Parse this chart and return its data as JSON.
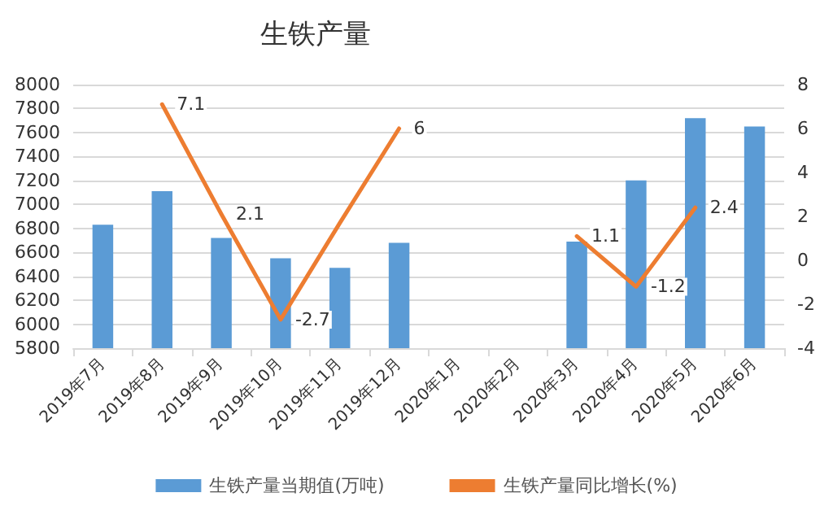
{
  "chart_data": {
    "type": "bar",
    "title": "生铁产量",
    "categories": [
      "2019年7月",
      "2019年8月",
      "2019年9月",
      "2019年10月",
      "2019年11月",
      "2019年12月",
      "2020年1月",
      "2020年2月",
      "2020年3月",
      "2020年4月",
      "2020年5月",
      "2020年6月"
    ],
    "series": [
      {
        "name": "生铁产量当期值(万吨)",
        "color": "#5b9bd5",
        "values": [
          6830,
          7110,
          6720,
          6550,
          6470,
          6680,
          null,
          null,
          6690,
          7200,
          7720,
          7650
        ]
      },
      {
        "name": "生铁产量同比增长(%)",
        "type": "line",
        "axis": "y2",
        "color": "#ed7d31",
        "values": [
          null,
          7.1,
          2.1,
          -2.7,
          1.7,
          6,
          null,
          null,
          1.1,
          -1.2,
          2.4,
          null
        ],
        "value_labels": [
          null,
          "7.1",
          "2.1",
          "-2.7",
          null,
          "6",
          null,
          null,
          "1.1",
          "-1.2",
          "2.4",
          null
        ]
      }
    ],
    "ylim": [
      5800,
      8000
    ],
    "yticks": [
      5800,
      6000,
      6200,
      6400,
      6600,
      6800,
      7000,
      7200,
      7400,
      7600,
      7800,
      8000
    ],
    "y2lim": [
      -4,
      8
    ],
    "y2ticks": [
      -4,
      -2,
      0,
      2,
      4,
      6,
      8
    ],
    "grid": "y",
    "legend": "bottom",
    "marker": "none",
    "line_style": "solid"
  }
}
